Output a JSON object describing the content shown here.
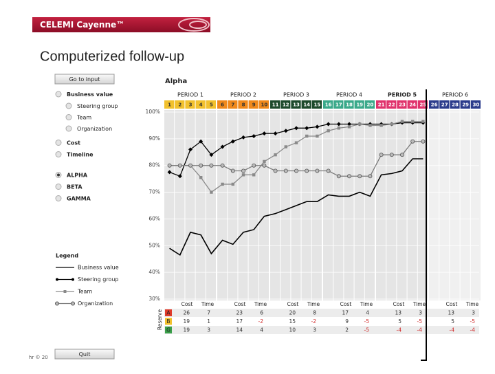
{
  "header": {
    "brand": "CELEMI Cayenne™",
    "title": "Computerized follow-up"
  },
  "sidebar": {
    "button": "Go to input",
    "options": [
      {
        "label": "Business value",
        "children": [
          "Steering group",
          "Team",
          "Organization"
        ]
      },
      {
        "label": "Cost"
      },
      {
        "label": "Timeline"
      }
    ],
    "projects": [
      "ALPHA",
      "BETA",
      "GAMMA"
    ],
    "selected": 0,
    "legend_title": "Legend",
    "quit": "Quit",
    "footer": "hr © 20"
  },
  "chart_data": {
    "type": "line",
    "title": "Alpha",
    "periods": [
      {
        "label": "PERIOD 1",
        "color": "#f2c12e"
      },
      {
        "label": "PERIOD 2",
        "color": "#f0891c"
      },
      {
        "label": "PERIOD 3",
        "color": "#1d4a2c"
      },
      {
        "label": "PERIOD 4",
        "color": "#3aa98a"
      },
      {
        "label": "PERIOD 5",
        "color": "#e0326c"
      },
      {
        "label": "PERIOD 6",
        "color": "#2c3c8c"
      }
    ],
    "categories": [
      "1",
      "2",
      "3",
      "4",
      "5",
      "6",
      "7",
      "8",
      "9",
      "10",
      "11",
      "12",
      "13",
      "14",
      "15",
      "16",
      "17",
      "18",
      "19",
      "20",
      "21",
      "22",
      "23",
      "24",
      "25",
      "26",
      "27",
      "28",
      "29",
      "30"
    ],
    "series": [
      {
        "name": "Business value",
        "color": "#000000",
        "marker": "none",
        "values": [
          49,
          46.5,
          55,
          54,
          47,
          52,
          50.5,
          55,
          56,
          61,
          62,
          63.5,
          65,
          66.5,
          66.5,
          69,
          68.5,
          68.5,
          70,
          68.5,
          76.5,
          77,
          78,
          82.5,
          82.5,
          null,
          null,
          null,
          null,
          null
        ]
      },
      {
        "name": "Steering group",
        "color": "#000000",
        "marker": "diamond",
        "values": [
          77.5,
          76,
          86,
          89,
          84,
          87,
          89,
          90.5,
          91,
          92,
          92,
          93,
          94,
          94,
          94.5,
          95.5,
          95.5,
          95.5,
          95.5,
          95.5,
          95.5,
          95.5,
          96,
          96,
          96,
          null,
          null,
          null,
          null,
          null
        ]
      },
      {
        "name": "Team",
        "color": "#8a8a8a",
        "marker": "square",
        "values": [
          80,
          80,
          80,
          75.5,
          70,
          73,
          73,
          76.5,
          76.5,
          81.5,
          84,
          87,
          88.5,
          91,
          91,
          93,
          94,
          94.5,
          95.5,
          95,
          95,
          95.5,
          96.5,
          96.5,
          96.5,
          null,
          null,
          null,
          null,
          null
        ]
      },
      {
        "name": "Organization",
        "color": "#7a7a7a",
        "marker": "circle",
        "values": [
          80,
          80,
          80,
          80,
          80,
          80,
          78,
          78,
          80,
          80,
          78,
          78,
          78,
          78,
          78,
          78,
          76,
          76,
          76,
          76,
          84,
          84,
          84,
          89,
          89,
          null,
          null,
          null,
          null,
          null
        ]
      }
    ],
    "ylim": [
      30,
      100
    ],
    "yticks": [
      {
        "value": 100,
        "label": "100%"
      },
      {
        "value": 90,
        "label": "90%"
      },
      {
        "value": 80,
        "label": "80%"
      },
      {
        "value": 70,
        "label": "70%"
      },
      {
        "value": 60,
        "label": "60%"
      },
      {
        "value": 50,
        "label": "50%"
      },
      {
        "value": 40,
        "label": "40%"
      },
      {
        "value": 30,
        "label": "30%"
      }
    ],
    "grid": true,
    "reserve": {
      "label": "Reserve",
      "columns": [
        "Cost",
        "Time"
      ],
      "rows": [
        {
          "name": "A",
          "color": "#e03b2a",
          "values": [
            26,
            7,
            23,
            6,
            20,
            8,
            17,
            4,
            13,
            3,
            13,
            3
          ]
        },
        {
          "name": "B",
          "color": "#f2c12e",
          "values": [
            19,
            1,
            17,
            -2,
            15,
            -2,
            9,
            -5,
            5,
            -5,
            5,
            -5
          ]
        },
        {
          "name": "G",
          "color": "#3aa04a",
          "values": [
            19,
            3,
            14,
            4,
            10,
            3,
            2,
            -5,
            -4,
            -4,
            -4,
            -4
          ]
        }
      ]
    }
  }
}
